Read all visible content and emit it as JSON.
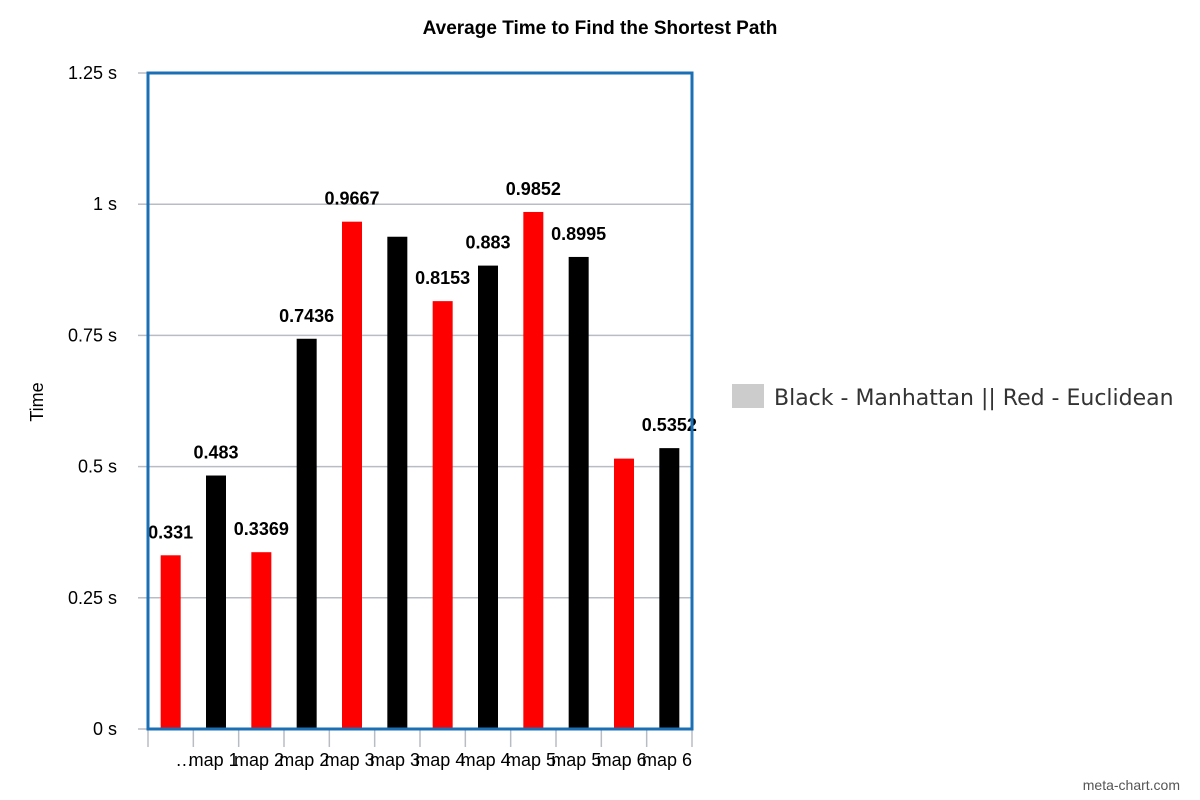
{
  "chart_data": {
    "type": "bar",
    "title": "Average Time to Find the Shortest Path",
    "ylabel": "Time",
    "xlabel": "",
    "ylim": [
      0,
      1.25
    ],
    "y_ticks": [
      {
        "value": 0,
        "label": "0 s"
      },
      {
        "value": 0.25,
        "label": "0.25 s"
      },
      {
        "value": 0.5,
        "label": "0.5 s"
      },
      {
        "value": 0.75,
        "label": "0.75 s"
      },
      {
        "value": 1,
        "label": "1 s"
      },
      {
        "value": 1.25,
        "label": "1.25 s"
      }
    ],
    "grid": true,
    "legend": {
      "position": "right",
      "label": "Black - Manhattan || Red - Euclidean",
      "color": "#cccccc"
    },
    "bars": [
      {
        "category": "…",
        "value": 0.331,
        "label": "0.331",
        "color": "#ff0000"
      },
      {
        "category": "map 1",
        "value": 0.483,
        "label": "0.483",
        "color": "#000000"
      },
      {
        "category": "map 2",
        "value": 0.3369,
        "label": "0.3369",
        "color": "#ff0000"
      },
      {
        "category": "map 2",
        "value": 0.7436,
        "label": "0.7436",
        "color": "#000000"
      },
      {
        "category": "map 3",
        "value": 0.9667,
        "label": "0.9667",
        "color": "#ff0000"
      },
      {
        "category": "map 3",
        "value": 0.938,
        "label": "",
        "color": "#000000"
      },
      {
        "category": "map 4",
        "value": 0.8153,
        "label": "0.8153",
        "color": "#ff0000"
      },
      {
        "category": "map 4",
        "value": 0.883,
        "label": "0.883",
        "color": "#000000"
      },
      {
        "category": "map 5",
        "value": 0.9852,
        "label": "0.9852",
        "color": "#ff0000"
      },
      {
        "category": "map 5",
        "value": 0.8995,
        "label": "0.8995",
        "color": "#000000"
      },
      {
        "category": "map 6",
        "value": 0.5152,
        "label": "",
        "color": "#ff0000"
      },
      {
        "category": "map 6",
        "value": 0.5352,
        "label": "0.5352",
        "color": "#000000"
      }
    ]
  },
  "footer": {
    "credit": "meta-chart.com"
  },
  "colors": {
    "frame": "#1a6fb5",
    "grid": "#b8bcc4",
    "legend_swatch": "#cccccc"
  }
}
